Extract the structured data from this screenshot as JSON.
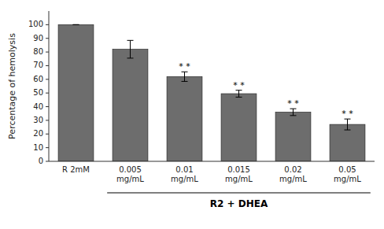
{
  "chart_data": {
    "type": "bar",
    "categories": [
      "R 2mM",
      "0.005\nmg/mL",
      "0.01\nmg/mL",
      "0.015\nmg/mL",
      "0.02\nmg/mL",
      "0.05\nmg/mL"
    ],
    "values": [
      100,
      82,
      62,
      49.5,
      36,
      27
    ],
    "errors": [
      0,
      6.5,
      3.5,
      2.5,
      2.5,
      4.0
    ],
    "annotations": [
      null,
      null,
      "* *",
      "* *",
      "* *",
      "* *"
    ],
    "color": "#6d6d6d",
    "ylabel": "Percentage of hemolysis",
    "xlabel": "R2 + DHEA",
    "ylim": [
      0,
      110
    ],
    "yticks": [
      0,
      10,
      20,
      30,
      40,
      50,
      60,
      70,
      80,
      90,
      100
    ],
    "grid": false
  }
}
